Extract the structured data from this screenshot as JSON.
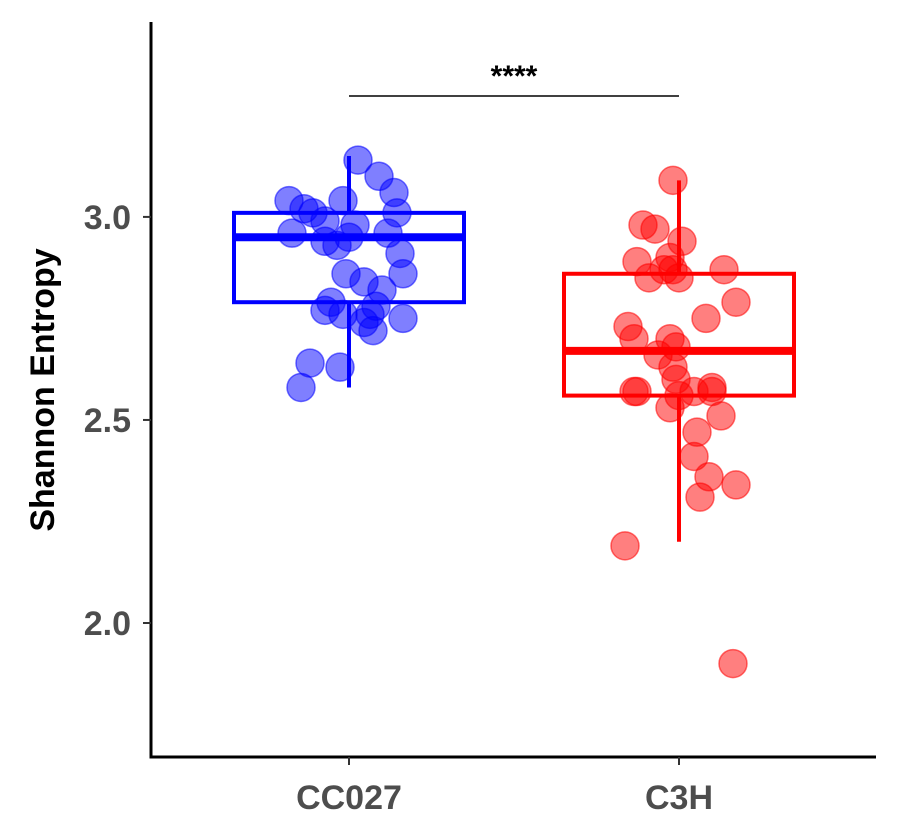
{
  "chart_data": {
    "type": "box",
    "title": "",
    "xlabel": "",
    "ylabel": "Shannon Entropy",
    "ylim": [
      1.67,
      3.48
    ],
    "yticks": [
      2.0,
      2.5,
      3.0
    ],
    "ytick_labels": [
      "2.0",
      "2.5",
      "3.0"
    ],
    "categories": [
      "CC027",
      "C3H"
    ],
    "groups": [
      {
        "name": "CC027",
        "color": "#0000ff",
        "box": {
          "q1": 2.79,
          "median": 2.95,
          "q3": 3.01,
          "whisker_low": 2.58,
          "whisker_high": 3.15
        },
        "points": [
          {
            "x": -0.2,
            "y": 3.04
          },
          {
            "x": -0.15,
            "y": 3.02
          },
          {
            "x": -0.12,
            "y": 3.01
          },
          {
            "x": -0.08,
            "y": 2.99
          },
          {
            "x": -0.02,
            "y": 3.04
          },
          {
            "x": 0.03,
            "y": 3.14
          },
          {
            "x": 0.1,
            "y": 3.1
          },
          {
            "x": 0.15,
            "y": 3.06
          },
          {
            "x": 0.16,
            "y": 3.01
          },
          {
            "x": 0.13,
            "y": 2.96
          },
          {
            "x": 0.02,
            "y": 2.98
          },
          {
            "x": -0.19,
            "y": 2.96
          },
          {
            "x": -0.08,
            "y": 2.94
          },
          {
            "x": -0.04,
            "y": 2.93
          },
          {
            "x": 0.0,
            "y": 2.95
          },
          {
            "x": 0.17,
            "y": 2.91
          },
          {
            "x": 0.18,
            "y": 2.86
          },
          {
            "x": -0.01,
            "y": 2.86
          },
          {
            "x": 0.05,
            "y": 2.84
          },
          {
            "x": 0.11,
            "y": 2.82
          },
          {
            "x": -0.06,
            "y": 2.79
          },
          {
            "x": -0.08,
            "y": 2.77
          },
          {
            "x": 0.09,
            "y": 2.78
          },
          {
            "x": 0.07,
            "y": 2.76
          },
          {
            "x": -0.02,
            "y": 2.76
          },
          {
            "x": 0.18,
            "y": 2.75
          },
          {
            "x": 0.05,
            "y": 2.74
          },
          {
            "x": 0.08,
            "y": 2.72
          },
          {
            "x": -0.13,
            "y": 2.64
          },
          {
            "x": -0.03,
            "y": 2.63
          },
          {
            "x": -0.16,
            "y": 2.58
          }
        ]
      },
      {
        "name": "C3H",
        "color": "#ff0000",
        "box": {
          "q1": 2.56,
          "median": 2.67,
          "q3": 2.86,
          "whisker_low": 2.2,
          "whisker_high": 3.09
        },
        "points": [
          {
            "x": -0.18,
            "y": 2.19
          },
          {
            "x": 0.18,
            "y": 1.9
          },
          {
            "x": -0.02,
            "y": 3.09
          },
          {
            "x": -0.12,
            "y": 2.98
          },
          {
            "x": -0.08,
            "y": 2.97
          },
          {
            "x": 0.01,
            "y": 2.94
          },
          {
            "x": -0.14,
            "y": 2.89
          },
          {
            "x": -0.03,
            "y": 2.9
          },
          {
            "x": -0.05,
            "y": 2.87
          },
          {
            "x": -0.02,
            "y": 2.87
          },
          {
            "x": 0.15,
            "y": 2.87
          },
          {
            "x": -0.1,
            "y": 2.85
          },
          {
            "x": 0.0,
            "y": 2.85
          },
          {
            "x": 0.19,
            "y": 2.79
          },
          {
            "x": 0.09,
            "y": 2.75
          },
          {
            "x": -0.17,
            "y": 2.73
          },
          {
            "x": -0.15,
            "y": 2.7
          },
          {
            "x": -0.03,
            "y": 2.7
          },
          {
            "x": -0.01,
            "y": 2.68
          },
          {
            "x": -0.07,
            "y": 2.66
          },
          {
            "x": -0.02,
            "y": 2.63
          },
          {
            "x": -0.01,
            "y": 2.6
          },
          {
            "x": -0.15,
            "y": 2.57
          },
          {
            "x": -0.14,
            "y": 2.57
          },
          {
            "x": 0.0,
            "y": 2.56
          },
          {
            "x": 0.05,
            "y": 2.57
          },
          {
            "x": 0.11,
            "y": 2.58
          },
          {
            "x": 0.11,
            "y": 2.57
          },
          {
            "x": -0.03,
            "y": 2.53
          },
          {
            "x": 0.14,
            "y": 2.51
          },
          {
            "x": 0.06,
            "y": 2.47
          },
          {
            "x": 0.05,
            "y": 2.41
          },
          {
            "x": 0.1,
            "y": 2.36
          },
          {
            "x": 0.19,
            "y": 2.34
          },
          {
            "x": 0.07,
            "y": 2.31
          }
        ]
      }
    ],
    "significance": {
      "label": "****",
      "from": "CC027",
      "to": "C3H"
    }
  }
}
